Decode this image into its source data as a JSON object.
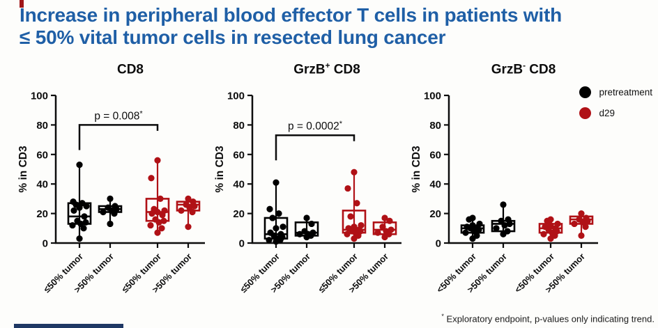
{
  "slide": {
    "title_line1": "Increase in peripheral blood effector T cells in patients with",
    "title_line2": "≤ 50% vital tumor cells in resected lung cancer",
    "footer_sup": "*",
    "footer_text": " Exploratory endpoint, p-values only indicating trend.",
    "colors": {
      "title": "#1f5fa6",
      "pretreatment": "#000000",
      "d29": "#b01116",
      "accent_bar": "#1f3864",
      "corner_mark": "#a01518"
    }
  },
  "legend": {
    "items": [
      {
        "label": "pretreatment",
        "color": "#000000"
      },
      {
        "label": "d29",
        "color": "#b01116"
      }
    ]
  },
  "chart_data": [
    {
      "type": "box-scatter",
      "title": {
        "pre": "CD8",
        "sup": "",
        "post": ""
      },
      "ylabel": "% in CD3",
      "ylim": [
        0,
        100
      ],
      "yticks": [
        0,
        20,
        40,
        60,
        80,
        100
      ],
      "categories": [
        "≤50% tumor",
        ">50% tumor",
        "≤50% tumor",
        ">50% tumor"
      ],
      "p_annotation": {
        "label": "p = 0.008",
        "sup": "*",
        "group_a": 0,
        "group_b": 2,
        "bar_y": 80,
        "leg_a": 17,
        "leg_b": 4
      },
      "groups": [
        {
          "series": "pretreatment",
          "category": "≤50% tumor",
          "color": "#000000",
          "box": {
            "lo": 3,
            "q1": 13,
            "med": 18,
            "q3": 27,
            "hi": 53
          },
          "points": [
            3,
            10,
            12,
            13,
            14,
            15,
            18,
            22,
            24,
            25,
            26,
            27,
            28,
            53
          ]
        },
        {
          "series": "pretreatment",
          "category": ">50% tumor",
          "color": "#000000",
          "box": {
            "lo": 13,
            "q1": 21,
            "med": 23,
            "q3": 25,
            "hi": 30
          },
          "points": [
            13,
            20,
            21,
            22,
            23,
            24,
            25,
            30
          ]
        },
        {
          "series": "d29",
          "category": "≤50% tumor",
          "color": "#b01116",
          "box": {
            "lo": 7,
            "q1": 15,
            "med": 21,
            "q3": 30,
            "hi": 56
          },
          "points": [
            7,
            10,
            12,
            14,
            15,
            16,
            19,
            20,
            21,
            22,
            23,
            30,
            44,
            56
          ]
        },
        {
          "series": "d29",
          "category": ">50% tumor",
          "color": "#b01116",
          "box": {
            "lo": 11,
            "q1": 22,
            "med": 26,
            "q3": 28,
            "hi": 30
          },
          "points": [
            11,
            21,
            22,
            24,
            25,
            26,
            28,
            30
          ]
        }
      ]
    },
    {
      "type": "box-scatter",
      "title": {
        "pre": "GrzB",
        "sup": "+",
        "post": " CD8"
      },
      "ylabel": "% in CD3",
      "ylim": [
        0,
        100
      ],
      "yticks": [
        0,
        20,
        40,
        60,
        80,
        100
      ],
      "categories": [
        "≤50% tumor",
        ">50% tumor",
        "≤50% tumor",
        ">50% tumor"
      ],
      "p_annotation": {
        "label": "p = 0.0002",
        "sup": "*",
        "group_a": 0,
        "group_b": 2,
        "bar_y": 73,
        "leg_a": 17,
        "leg_b": 4
      },
      "groups": [
        {
          "series": "pretreatment",
          "category": "≤50% tumor",
          "color": "#000000",
          "box": {
            "lo": 1,
            "q1": 3,
            "med": 6,
            "q3": 17,
            "hi": 41
          },
          "points": [
            1,
            2,
            2,
            3,
            4,
            5,
            6,
            7,
            10,
            11,
            17,
            20,
            23,
            41
          ]
        },
        {
          "series": "pretreatment",
          "category": ">50% tumor",
          "color": "#000000",
          "box": {
            "lo": 4,
            "q1": 5,
            "med": 7,
            "q3": 14,
            "hi": 17
          },
          "points": [
            4,
            5,
            6,
            6,
            7,
            8,
            13,
            17
          ]
        },
        {
          "series": "d29",
          "category": "≤50% tumor",
          "color": "#b01116",
          "box": {
            "lo": 3,
            "q1": 7,
            "med": 9,
            "q3": 22,
            "hi": 48
          },
          "points": [
            3,
            5,
            6,
            7,
            8,
            8,
            9,
            10,
            11,
            12,
            18,
            27,
            37,
            48
          ]
        },
        {
          "series": "d29",
          "category": ">50% tumor",
          "color": "#b01116",
          "box": {
            "lo": 4,
            "q1": 6,
            "med": 9,
            "q3": 14,
            "hi": 17
          },
          "points": [
            4,
            6,
            7,
            8,
            9,
            11,
            15,
            17
          ]
        }
      ]
    },
    {
      "type": "box-scatter",
      "title": {
        "pre": "GrzB",
        "sup": "-",
        "post": " CD8"
      },
      "ylabel": "% in CD3",
      "ylim": [
        0,
        100
      ],
      "yticks": [
        0,
        20,
        40,
        60,
        80,
        100
      ],
      "categories": [
        "<50% tumor",
        ">50% tumor",
        "<50% tumor",
        ">50% tumor"
      ],
      "p_annotation": null,
      "groups": [
        {
          "series": "pretreatment",
          "category": "<50% tumor",
          "color": "#000000",
          "box": {
            "lo": 3,
            "q1": 7,
            "med": 10,
            "q3": 12,
            "hi": 17
          },
          "points": [
            3,
            5,
            7,
            8,
            9,
            10,
            10,
            11,
            12,
            13,
            16,
            17
          ]
        },
        {
          "series": "pretreatment",
          "category": ">50% tumor",
          "color": "#000000",
          "box": {
            "lo": 6,
            "q1": 8,
            "med": 13,
            "q3": 15,
            "hi": 26
          },
          "points": [
            6,
            8,
            10,
            12,
            13,
            15,
            16,
            26
          ]
        },
        {
          "series": "d29",
          "category": "<50% tumor",
          "color": "#b01116",
          "box": {
            "lo": 3,
            "q1": 7,
            "med": 10,
            "q3": 13,
            "hi": 16
          },
          "points": [
            3,
            5,
            6,
            7,
            8,
            9,
            10,
            11,
            12,
            13,
            15,
            16
          ]
        },
        {
          "series": "d29",
          "category": ">50% tumor",
          "color": "#b01116",
          "box": {
            "lo": 5,
            "q1": 13,
            "med": 16,
            "q3": 18,
            "hi": 20
          },
          "points": [
            5,
            11,
            13,
            14,
            15,
            16,
            17,
            20
          ]
        }
      ]
    }
  ]
}
